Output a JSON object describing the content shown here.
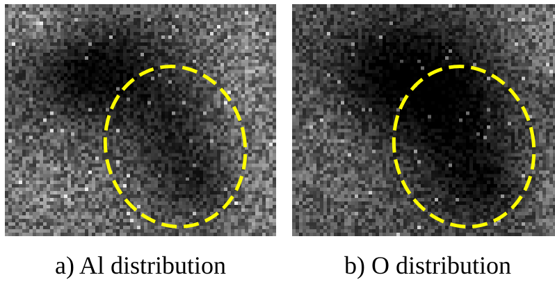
{
  "panels": [
    {
      "caption": "a) Al distribution",
      "element": "Al",
      "image": "grayscale elemental map, noisy pixelated texture with dark region upper-left and bright edges",
      "overlay": "yellow dashed ellipse marking region of interest"
    },
    {
      "caption": "b) O distribution",
      "element": "O",
      "image": "grayscale elemental map, noisy pixelated texture with dark region upper-center",
      "overlay": "yellow dashed ellipse marking region of interest"
    }
  ],
  "colors": {
    "background": "#ffffff",
    "overlay": "#ffff00",
    "text": "#000000"
  }
}
